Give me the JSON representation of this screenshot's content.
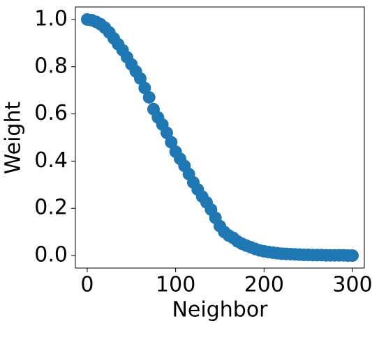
{
  "chart_data": {
    "type": "scatter",
    "xlabel": "Neighbor",
    "ylabel": "Weight",
    "color": "#1f77b4",
    "x": [
      0,
      5,
      10,
      15,
      20,
      25,
      30,
      35,
      40,
      45,
      50,
      55,
      60,
      65,
      70,
      75,
      80,
      85,
      90,
      95,
      100,
      105,
      110,
      115,
      120,
      125,
      130,
      135,
      140,
      145,
      150,
      155,
      160,
      165,
      170,
      175,
      180,
      185,
      190,
      195,
      200,
      205,
      210,
      215,
      220,
      225,
      230,
      235,
      240,
      245,
      250,
      255,
      260,
      265,
      270,
      275,
      280,
      285,
      290,
      295,
      300
    ],
    "values": [
      1.0,
      0.997,
      0.99,
      0.98,
      0.965,
      0.945,
      0.92,
      0.895,
      0.87,
      0.84,
      0.81,
      0.78,
      0.75,
      0.71,
      0.67,
      0.62,
      0.585,
      0.555,
      0.52,
      0.48,
      0.44,
      0.41,
      0.38,
      0.345,
      0.31,
      0.28,
      0.25,
      0.225,
      0.195,
      0.16,
      0.125,
      0.1,
      0.085,
      0.075,
      0.06,
      0.05,
      0.042,
      0.035,
      0.028,
      0.022,
      0.018,
      0.015,
      0.012,
      0.01,
      0.008,
      0.007,
      0.006,
      0.005,
      0.004,
      0.003,
      0.003,
      0.002,
      0.002,
      0.002,
      0.001,
      0.001,
      0.001,
      0.001,
      0.001,
      0.0,
      0.0
    ],
    "xlim": [
      -13.4,
      313.4
    ],
    "ylim": [
      -0.053,
      1.053
    ],
    "xticks": [
      0,
      100,
      200,
      300
    ],
    "yticks": [
      {
        "value": 0,
        "label": "0.0"
      },
      0.2,
      0.4,
      0.6,
      0.8,
      {
        "value": 1,
        "label": "1.0"
      }
    ]
  }
}
